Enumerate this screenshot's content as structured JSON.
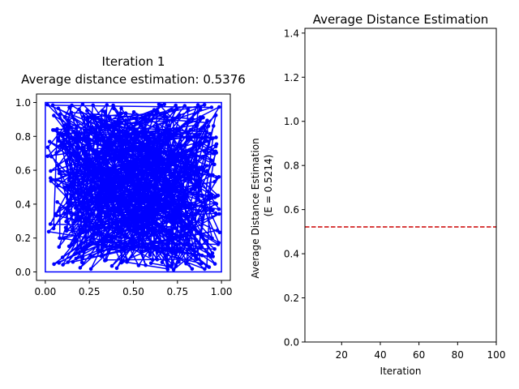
{
  "chart_data": [
    {
      "type": "line",
      "title": "Iteration 1\nAverage distance estimation: 0.5376",
      "title_lines": [
        "Iteration 1",
        "Average distance estimation: 0.5376"
      ],
      "xlabel": "",
      "ylabel": "",
      "xlim": [
        -0.05,
        1.05
      ],
      "ylim": [
        -0.05,
        1.05
      ],
      "xticks": [
        0.0,
        0.25,
        0.5,
        0.75,
        1.0
      ],
      "xtick_labels": [
        "0.00",
        "0.25",
        "0.50",
        "0.75",
        "1.00"
      ],
      "yticks": [
        0.0,
        0.2,
        0.4,
        0.6,
        0.8,
        1.0
      ],
      "ytick_labels": [
        "0.0",
        "0.2",
        "0.4",
        "0.6",
        "0.8",
        "1.0"
      ],
      "grid": false,
      "series": [
        {
          "color": "#0000ff",
          "marker": "circle",
          "closed_path": true,
          "n_points": 600,
          "distribution": "uniform random in [0,1] x [0,1]",
          "seed": 42
        }
      ],
      "outer_frame": [
        [
          0.0,
          0.0
        ],
        [
          1.0,
          0.0
        ],
        [
          1.0,
          1.0
        ],
        [
          0.0,
          1.0
        ]
      ]
    },
    {
      "type": "line",
      "title": "Average Distance Estimation",
      "xlabel": "Iteration",
      "ylabel_lines": [
        "Average Distance Estimation",
        "(E = 0.5214)"
      ],
      "xlim": [
        1,
        100
      ],
      "ylim": [
        0.0,
        1.4214
      ],
      "xticks": [
        20,
        40,
        60,
        80,
        100
      ],
      "xtick_labels": [
        "20",
        "40",
        "60",
        "80",
        "100"
      ],
      "yticks": [
        0.0,
        0.2,
        0.4,
        0.6,
        0.8,
        1.0,
        1.2,
        1.4
      ],
      "ytick_labels": [
        "0.0",
        "0.2",
        "0.4",
        "0.6",
        "0.8",
        "1.0",
        "1.2",
        "1.4"
      ],
      "grid": false,
      "series": [],
      "reference_lines": [
        {
          "y": 0.5214,
          "color": "#cc0000",
          "style": "dashed"
        }
      ]
    }
  ]
}
